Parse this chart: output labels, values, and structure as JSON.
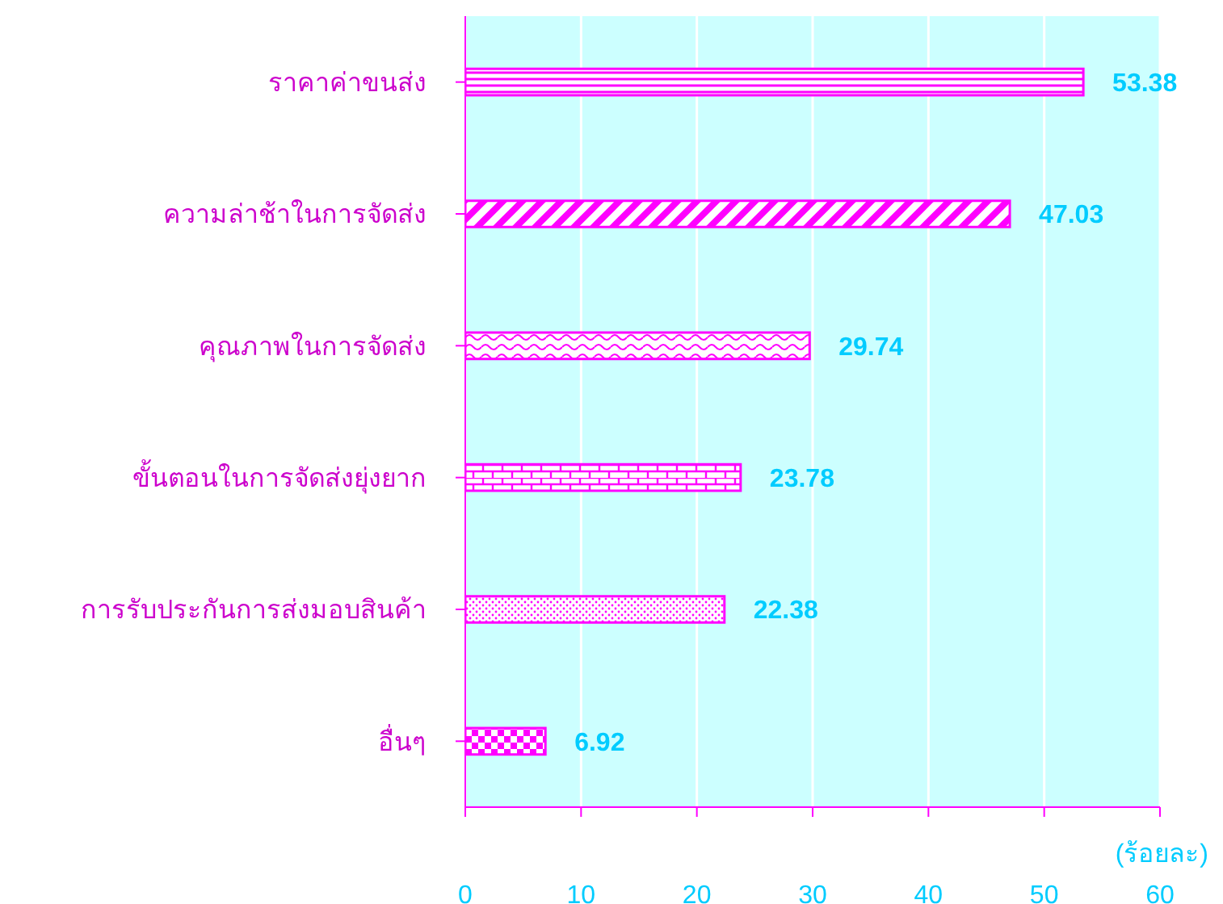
{
  "chart_data": {
    "type": "bar",
    "orientation": "horizontal",
    "xlabel": "(ร้อยละ)",
    "categories": [
      "ราคาค่าขนส่ง",
      "ความล่าช้าในการจัดส่ง",
      "คุณภาพในการจัดส่ง",
      "ขั้นตอนในการจัดส่งยุ่งยาก",
      "การรับประกันการส่งมอบสินค้า",
      "อื่นๆ"
    ],
    "values": [
      53.38,
      47.03,
      29.74,
      23.78,
      22.38,
      6.92
    ],
    "color": "#ff00ff",
    "xlim": [
      0,
      60
    ],
    "xticks": [
      0,
      10,
      20,
      30,
      40,
      50,
      60
    ],
    "grid": "x",
    "data_labels": true
  }
}
